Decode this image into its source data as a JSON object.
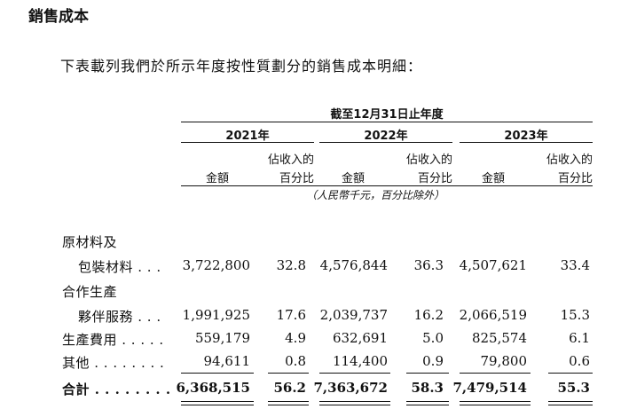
{
  "title": "銷售成本",
  "intro": "下表載列我們於所示年度按性質劃分的銷售成本明細：",
  "period_header": "截至12月31日止年度",
  "years": [
    "2021年",
    "2022年",
    "2023年"
  ],
  "col_amount": "金額",
  "col_pct_line1": "佔收入的",
  "col_pct_line2": "百分比",
  "unit_note": "（人民幣千元，百分比除外）",
  "rows": [
    {
      "label_line1": "原材料及",
      "label_line2": "包裝材料 . . .",
      "values": [
        "3,722,800",
        "32.8",
        "4,576,844",
        "36.3",
        "4,507,621",
        "33.4"
      ]
    },
    {
      "label_line1": "合作生產",
      "label_line2": "夥伴服務 . . .",
      "values": [
        "1,991,925",
        "17.6",
        "2,039,737",
        "16.2",
        "2,066,519",
        "15.3"
      ]
    },
    {
      "label_line2": "生產費用 . . . . .",
      "values": [
        "559,179",
        "4.9",
        "632,691",
        "5.0",
        "825,574",
        "6.1"
      ]
    },
    {
      "label_line2": "其他  . . . . . . . .",
      "values": [
        "94,611",
        "0.8",
        "114,400",
        "0.9",
        "79,800",
        "0.6"
      ]
    }
  ],
  "total": {
    "label": "合計  . . . . . . . .",
    "values": [
      "6,368,515",
      "56.2",
      "7,363,672",
      "58.3",
      "7,479,514",
      "55.3"
    ]
  }
}
